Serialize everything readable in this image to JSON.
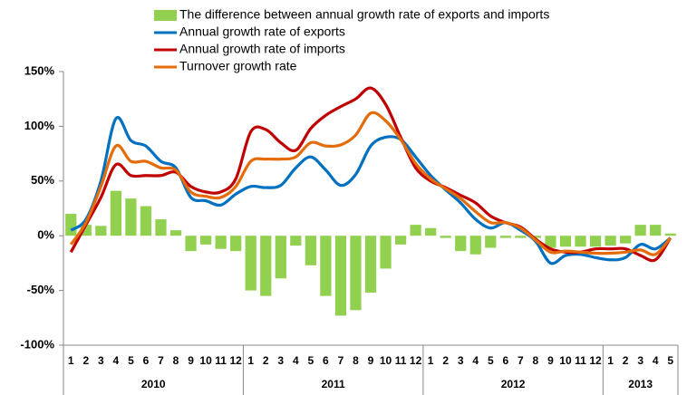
{
  "chart_data": {
    "type": "bar-line",
    "categories": [
      "1",
      "2",
      "3",
      "4",
      "5",
      "6",
      "7",
      "8",
      "9",
      "10",
      "11",
      "12",
      "1",
      "2",
      "3",
      "4",
      "5",
      "6",
      "7",
      "8",
      "9",
      "10",
      "11",
      "12",
      "1",
      "2",
      "3",
      "4",
      "5",
      "6",
      "7",
      "8",
      "9",
      "10",
      "11",
      "12",
      "1",
      "2",
      "3",
      "4",
      "5"
    ],
    "groups": [
      {
        "label": "2010",
        "count": 12
      },
      {
        "label": "2011",
        "count": 12
      },
      {
        "label": "2012",
        "count": 12
      },
      {
        "label": "2013",
        "count": 5
      }
    ],
    "series": [
      {
        "name": "The difference between annual growth rate of exports and imports",
        "type": "bar",
        "color": "#92d050",
        "values": [
          20,
          10,
          9,
          41,
          34,
          27,
          15,
          5,
          -14,
          -8,
          -12,
          -14,
          -50,
          -55,
          -39,
          -9,
          -27,
          -55,
          -73,
          -68,
          -52,
          -30,
          -8,
          10,
          7,
          -2,
          -14,
          -17,
          -11,
          -2,
          -2,
          -2,
          -11,
          -10,
          -10,
          -10,
          -9,
          -7,
          10,
          10,
          2
        ]
      },
      {
        "name": "Annual growth rate of exports",
        "type": "line",
        "color": "#0070c0",
        "values": [
          5,
          15,
          50,
          107,
          87,
          82,
          68,
          62,
          35,
          32,
          28,
          38,
          45,
          44,
          46,
          62,
          72,
          60,
          46,
          56,
          82,
          90,
          88,
          72,
          55,
          42,
          30,
          15,
          7,
          12,
          5,
          -5,
          -25,
          -18,
          -17,
          -20,
          -22,
          -20,
          -8,
          -12,
          -2
        ]
      },
      {
        "name": "Annual growth rate of imports",
        "type": "line",
        "color": "#c00000",
        "values": [
          -15,
          10,
          35,
          65,
          55,
          55,
          55,
          58,
          45,
          40,
          40,
          52,
          95,
          97,
          85,
          78,
          98,
          110,
          118,
          125,
          135,
          120,
          90,
          62,
          50,
          44,
          37,
          30,
          18,
          12,
          8,
          -3,
          -12,
          -15,
          -15,
          -12,
          -12,
          -12,
          -18,
          -22,
          -2
        ]
      },
      {
        "name": "Turnover growth rate",
        "type": "line",
        "color": "#e46c0a",
        "values": [
          -8,
          12,
          45,
          82,
          68,
          68,
          62,
          60,
          40,
          36,
          35,
          45,
          68,
          70,
          70,
          72,
          85,
          82,
          83,
          92,
          112,
          105,
          88,
          66,
          52,
          43,
          34,
          22,
          12,
          12,
          7,
          -4,
          -15,
          -14,
          -15,
          -16,
          -16,
          -15,
          -13,
          -17,
          -2
        ]
      }
    ],
    "ylim": [
      -100,
      150
    ],
    "yticks": [
      {
        "value": -100,
        "label": "-100%"
      },
      {
        "value": -50,
        "label": "-50%"
      },
      {
        "value": 0,
        "label": "0%"
      },
      {
        "value": 50,
        "label": "50%"
      },
      {
        "value": 100,
        "label": "100%"
      },
      {
        "value": 150,
        "label": "150%"
      }
    ]
  }
}
